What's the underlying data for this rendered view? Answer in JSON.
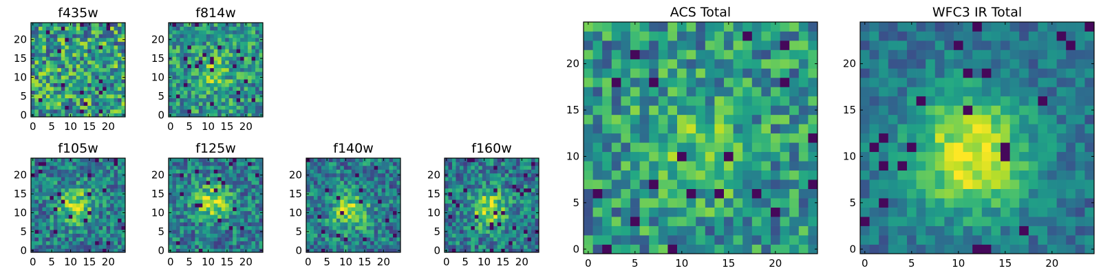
{
  "chart_data": [
    {
      "type": "heatmap",
      "title": "f435w",
      "xlim": [
        0,
        24
      ],
      "ylim": [
        0,
        24
      ],
      "xticks": [
        0,
        5,
        10,
        15,
        20
      ],
      "yticks": [
        0,
        5,
        10,
        15,
        20
      ],
      "grid": 25,
      "seed": 11,
      "mode": "noise",
      "colormap": "viridis"
    },
    {
      "type": "heatmap",
      "title": "f814w",
      "xlim": [
        0,
        24
      ],
      "ylim": [
        0,
        24
      ],
      "xticks": [
        0,
        5,
        10,
        15,
        20
      ],
      "yticks": [
        0,
        5,
        10,
        15,
        20
      ],
      "grid": 25,
      "seed": 23,
      "mode": "weak-center",
      "colormap": "viridis"
    },
    {
      "type": "heatmap",
      "title": "f105w",
      "xlim": [
        0,
        24
      ],
      "ylim": [
        0,
        24
      ],
      "xticks": [
        0,
        5,
        10,
        15,
        20
      ],
      "yticks": [
        0,
        5,
        10,
        15,
        20
      ],
      "grid": 25,
      "seed": 37,
      "mode": "source",
      "colormap": "viridis"
    },
    {
      "type": "heatmap",
      "title": "f125w",
      "xlim": [
        0,
        24
      ],
      "ylim": [
        0,
        24
      ],
      "xticks": [
        0,
        5,
        10,
        15,
        20
      ],
      "yticks": [
        0,
        5,
        10,
        15,
        20
      ],
      "grid": 25,
      "seed": 41,
      "mode": "source",
      "colormap": "viridis"
    },
    {
      "type": "heatmap",
      "title": "f140w",
      "xlim": [
        0,
        24
      ],
      "ylim": [
        0,
        24
      ],
      "xticks": [
        0,
        5,
        10,
        15,
        20
      ],
      "yticks": [
        0,
        5,
        10,
        15,
        20
      ],
      "grid": 25,
      "seed": 53,
      "mode": "source",
      "colormap": "viridis"
    },
    {
      "type": "heatmap",
      "title": "f160w",
      "xlim": [
        0,
        24
      ],
      "ylim": [
        0,
        24
      ],
      "xticks": [
        0,
        5,
        10,
        15,
        20
      ],
      "yticks": [
        0,
        5,
        10,
        15,
        20
      ],
      "grid": 25,
      "seed": 67,
      "mode": "source",
      "colormap": "viridis"
    },
    {
      "type": "heatmap",
      "title": "ACS Total",
      "xlim": [
        0,
        24
      ],
      "ylim": [
        0,
        24
      ],
      "xticks": [
        0,
        5,
        10,
        15,
        20
      ],
      "yticks": [
        0,
        5,
        10,
        15,
        20
      ],
      "grid": 25,
      "seed": 79,
      "mode": "weak-center",
      "colormap": "viridis"
    },
    {
      "type": "heatmap",
      "title": "WFC3 IR Total",
      "xlim": [
        0,
        24
      ],
      "ylim": [
        0,
        24
      ],
      "xticks": [
        0,
        5,
        10,
        15,
        20
      ],
      "yticks": [
        0,
        5,
        10,
        15,
        20
      ],
      "grid": 25,
      "seed": 97,
      "mode": "strong-source",
      "colormap": "viridis"
    }
  ]
}
